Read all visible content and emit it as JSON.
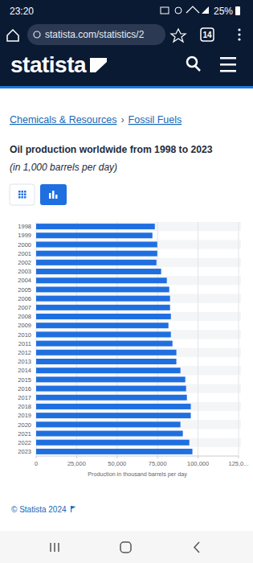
{
  "page": {
    "status_time": "23:20",
    "battery": "25%",
    "url": "statista.com/statistics/2",
    "tab_count": "14",
    "logo": "statista",
    "breadcrumb": [
      "Chemicals & Resources",
      "Fossil Fuels"
    ],
    "breadcrumb_separator": "›",
    "footer": "© Statista 2024"
  },
  "chart_data": {
    "type": "bar",
    "orientation": "horizontal",
    "title": "Oil production worldwide from 1998 to 2023",
    "subtitle": "(in 1,000 barrels per day)",
    "x_label": "Production in thousand barrels per day",
    "categories": [
      "1998",
      "1999",
      "2000",
      "2001",
      "2002",
      "2003",
      "2004",
      "2005",
      "2006",
      "2007",
      "2008",
      "2009",
      "2010",
      "2011",
      "2012",
      "2013",
      "2014",
      "2015",
      "2016",
      "2017",
      "2018",
      "2019",
      "2020",
      "2021",
      "2022",
      "2023"
    ],
    "values": [
      73300,
      71800,
      74800,
      74800,
      74300,
      77200,
      80700,
      82200,
      82700,
      82700,
      83200,
      81700,
      83200,
      84200,
      86600,
      86600,
      89100,
      92100,
      92600,
      93100,
      95500,
      95500,
      89100,
      90600,
      94600,
      96500
    ],
    "color": "#1f6fe0",
    "xlim": [
      0,
      125000
    ],
    "xticks": [
      0,
      {
        "value": 25000,
        "label": "25,000"
      },
      {
        "value": 50000,
        "label": "50,000"
      },
      {
        "value": 75000,
        "label": "75,000"
      },
      {
        "value": 100000,
        "label": "100,000"
      },
      {
        "value": 125000,
        "label": "125,0..."
      }
    ],
    "grid": true
  }
}
